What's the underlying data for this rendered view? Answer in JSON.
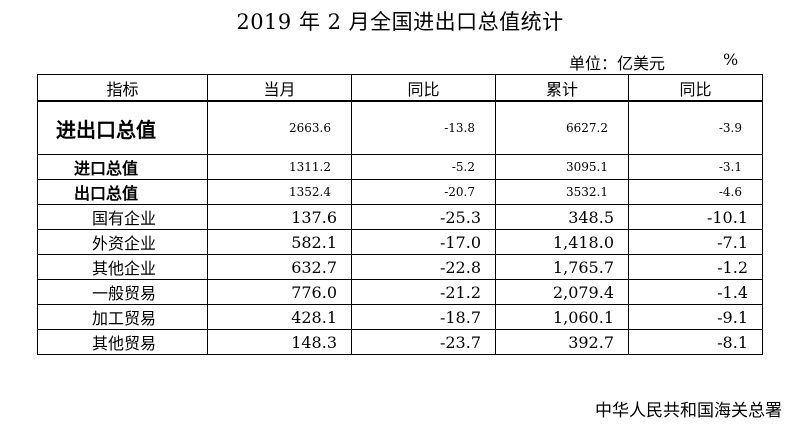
{
  "title": "2019 年 2 月全国进出口总值统计",
  "unit": {
    "label": "单位：亿美元",
    "percent": "%"
  },
  "headers": [
    "指标",
    "当月",
    "同比",
    "累计",
    "同比"
  ],
  "rows": [
    {
      "name": "进出口总值",
      "month": "2663.6",
      "month_yoy": "-13.8",
      "cumulative": "6627.2",
      "cumulative_yoy": "-3.9"
    },
    {
      "name": "进口总值",
      "month": "1311.2",
      "month_yoy": "-5.2",
      "cumulative": "3095.1",
      "cumulative_yoy": "-3.1"
    },
    {
      "name": "出口总值",
      "month": "1352.4",
      "month_yoy": "-20.7",
      "cumulative": "3532.1",
      "cumulative_yoy": "-4.6"
    },
    {
      "name": "国有企业",
      "month": "137.6",
      "month_yoy": "-25.3",
      "cumulative": "348.5",
      "cumulative_yoy": "-10.1"
    },
    {
      "name": "外资企业",
      "month": "582.1",
      "month_yoy": "-17.0",
      "cumulative": "1,418.0",
      "cumulative_yoy": "-7.1"
    },
    {
      "name": "其他企业",
      "month": "632.7",
      "month_yoy": "-22.8",
      "cumulative": "1,765.7",
      "cumulative_yoy": "-1.2"
    },
    {
      "name": "一般贸易",
      "month": "776.0",
      "month_yoy": "-21.2",
      "cumulative": "2,079.4",
      "cumulative_yoy": "-1.4"
    },
    {
      "name": "加工贸易",
      "month": "428.1",
      "month_yoy": "-18.7",
      "cumulative": "1,060.1",
      "cumulative_yoy": "-9.1"
    },
    {
      "name": "其他贸易",
      "month": "148.3",
      "month_yoy": "-23.7",
      "cumulative": "392.7",
      "cumulative_yoy": "-8.1"
    }
  ],
  "footer": "中华人民共和国海关总署"
}
